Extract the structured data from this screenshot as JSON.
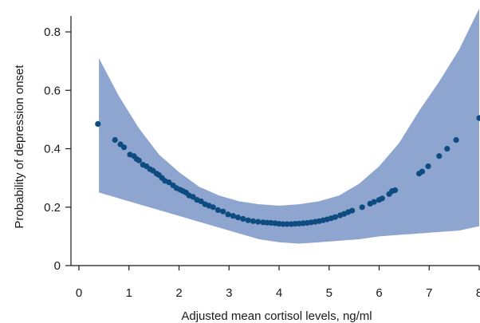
{
  "chart_data": {
    "type": "scatter",
    "xlabel": "Adjusted mean cortisol levels, ng/ml",
    "ylabel": "Probability of depression onset",
    "xlim": [
      0,
      8
    ],
    "ylim": [
      0,
      0.88
    ],
    "x_ticks": [
      "0",
      "1",
      "2",
      "3",
      "4",
      "5",
      "6",
      "7",
      "8"
    ],
    "y_ticks": [
      "0",
      "0.2",
      "0.4",
      "0.6",
      "0.8"
    ],
    "grid": false,
    "colors": {
      "points": "#0d4b80",
      "band": "#8ea6cf",
      "axis": "#1a1a1a"
    },
    "confidence_band": {
      "x": [
        0.4,
        0.8,
        1.2,
        1.6,
        2.0,
        2.4,
        2.8,
        3.2,
        3.6,
        4.0,
        4.4,
        4.8,
        5.2,
        5.6,
        6.0,
        6.4,
        6.8,
        7.2,
        7.6,
        8.0
      ],
      "upper": [
        0.71,
        0.58,
        0.47,
        0.38,
        0.32,
        0.27,
        0.24,
        0.22,
        0.21,
        0.205,
        0.21,
        0.22,
        0.24,
        0.28,
        0.34,
        0.42,
        0.53,
        0.63,
        0.74,
        0.88
      ],
      "lower": [
        0.25,
        0.23,
        0.21,
        0.19,
        0.17,
        0.15,
        0.13,
        0.11,
        0.09,
        0.08,
        0.075,
        0.08,
        0.085,
        0.09,
        0.1,
        0.105,
        0.11,
        0.115,
        0.12,
        0.135
      ]
    },
    "points": {
      "x": [
        0.38,
        0.72,
        0.83,
        0.9,
        1.02,
        1.1,
        1.15,
        1.2,
        1.28,
        1.35,
        1.42,
        1.48,
        1.55,
        1.6,
        1.66,
        1.72,
        1.8,
        1.88,
        1.95,
        2.02,
        2.08,
        2.14,
        2.2,
        2.28,
        2.36,
        2.44,
        2.52,
        2.6,
        2.68,
        2.78,
        2.88,
        2.98,
        3.08,
        3.18,
        3.28,
        3.38,
        3.48,
        3.58,
        3.68,
        3.76,
        3.84,
        3.92,
        4.0,
        4.08,
        4.16,
        4.24,
        4.32,
        4.4,
        4.48,
        4.56,
        4.64,
        4.72,
        4.8,
        4.88,
        4.96,
        5.04,
        5.12,
        5.22,
        5.3,
        5.38,
        5.46,
        5.66,
        5.82,
        5.9,
        6.0,
        6.06,
        6.2,
        6.26,
        6.32,
        6.8,
        6.86,
        6.98,
        7.2,
        7.36,
        7.54,
        8.0
      ],
      "y": [
        0.485,
        0.43,
        0.415,
        0.405,
        0.38,
        0.375,
        0.365,
        0.36,
        0.345,
        0.34,
        0.33,
        0.325,
        0.315,
        0.31,
        0.3,
        0.29,
        0.285,
        0.275,
        0.265,
        0.26,
        0.255,
        0.25,
        0.24,
        0.235,
        0.225,
        0.22,
        0.21,
        0.205,
        0.2,
        0.19,
        0.185,
        0.175,
        0.17,
        0.165,
        0.16,
        0.155,
        0.152,
        0.15,
        0.148,
        0.147,
        0.146,
        0.145,
        0.143,
        0.142,
        0.142,
        0.142,
        0.143,
        0.144,
        0.145,
        0.146,
        0.148,
        0.15,
        0.152,
        0.155,
        0.158,
        0.162,
        0.166,
        0.172,
        0.177,
        0.183,
        0.188,
        0.2,
        0.212,
        0.218,
        0.225,
        0.23,
        0.245,
        0.255,
        0.258,
        0.315,
        0.322,
        0.34,
        0.375,
        0.4,
        0.43,
        0.505
      ]
    }
  }
}
